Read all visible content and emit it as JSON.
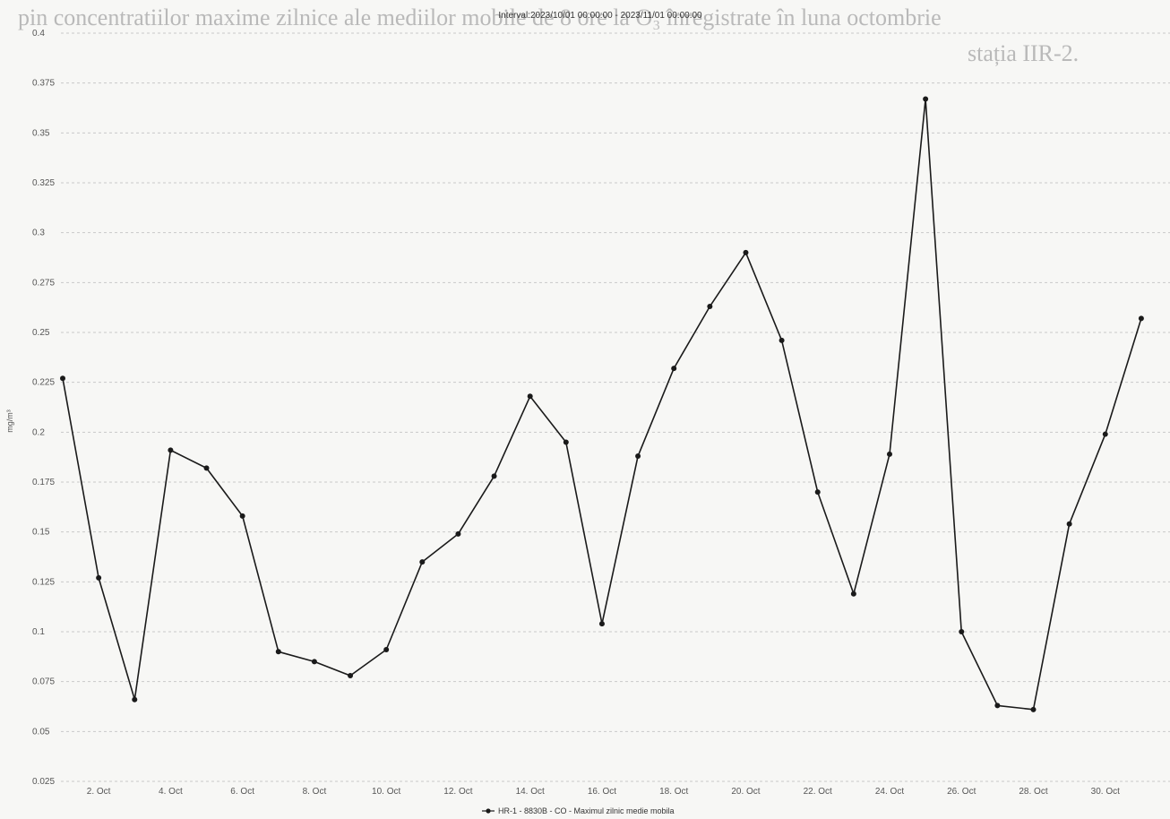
{
  "bleed_through": {
    "line1": "pin concentratiilor maxime zilnice ale mediilor mobile de 8 ore la O₃ înregistrate în luna octombrie",
    "line2": "stația IIR-2."
  },
  "chart_data": {
    "type": "line",
    "title": "Interval:2023/10/01 00:00:00 - 2023/11/01 00:00:00",
    "ylabel": "mg/m³",
    "xlabel": "",
    "ylim": [
      0.025,
      0.4
    ],
    "yticks": [
      0.025,
      0.05,
      0.075,
      0.1,
      0.125,
      0.15,
      0.175,
      0.2,
      0.225,
      0.25,
      0.275,
      0.3,
      0.325,
      0.35,
      0.375,
      0.4
    ],
    "ytick_labels": [
      "0.025",
      "0.05",
      "0.075",
      "0.1",
      "0.125",
      "0.15",
      "0.175",
      "0.2",
      "0.225",
      "0.25",
      "0.275",
      "0.3",
      "0.325",
      "0.35",
      "0.375",
      "0.4"
    ],
    "xticks": [
      2,
      4,
      6,
      8,
      10,
      12,
      14,
      16,
      18,
      20,
      22,
      24,
      26,
      28,
      30
    ],
    "xtick_labels": [
      "2. Oct",
      "4. Oct",
      "6. Oct",
      "8. Oct",
      "10. Oct",
      "12. Oct",
      "14. Oct",
      "16. Oct",
      "18. Oct",
      "20. Oct",
      "22. Oct",
      "24. Oct",
      "26. Oct",
      "28. Oct",
      "30. Oct"
    ],
    "xlim": [
      0.95,
      31.8
    ],
    "grid": true,
    "legend_position": "bottom-center",
    "series": [
      {
        "name": "HR-1 - 8830B - CO - Maximul zilnic medie mobila",
        "color": "#1a1a1a",
        "x": [
          1,
          2,
          3,
          4,
          5,
          6,
          7,
          8,
          9,
          10,
          11,
          12,
          13,
          14,
          15,
          16,
          17,
          18,
          19,
          20,
          21,
          22,
          23,
          24,
          25,
          26,
          27,
          28,
          29,
          30,
          31
        ],
        "y": [
          0.227,
          0.127,
          0.066,
          0.191,
          0.182,
          0.158,
          0.09,
          0.085,
          0.078,
          0.091,
          0.135,
          0.149,
          0.178,
          0.218,
          0.195,
          0.104,
          0.188,
          0.232,
          0.263,
          0.29,
          0.246,
          0.17,
          0.119,
          0.189,
          0.367,
          0.1,
          0.063,
          0.061,
          0.154,
          0.199,
          0.257
        ]
      }
    ]
  }
}
